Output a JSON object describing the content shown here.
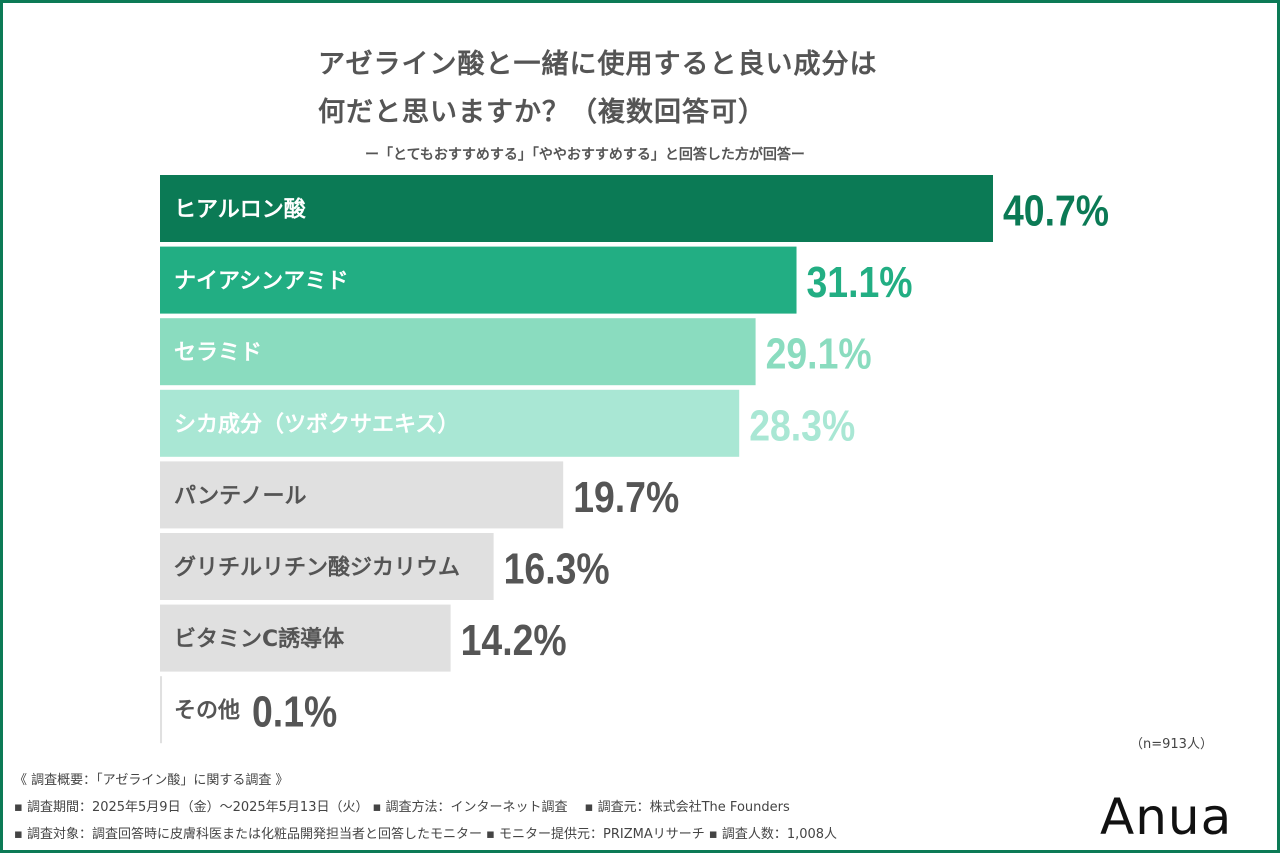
{
  "title_line1": "アゼライン酸と一緒に使用すると良い成分は",
  "title_line2": "何だと思いますか？（複数回答可）",
  "subtitle": "ー「とてもおすすめする」「ややおすすめする」と回答した方が回答ー",
  "chart_data": {
    "type": "bar",
    "orientation": "horizontal",
    "categories": [
      "ヒアルロン酸",
      "ナイアシンアミド",
      "セラミド",
      "シカ成分（ツボクサエキス）",
      "パンテノール",
      "グリチルリチン酸ジカリウム",
      "ビタミンC誘導体",
      "その他"
    ],
    "values": [
      40.7,
      31.1,
      29.1,
      28.3,
      19.7,
      16.3,
      14.2,
      0.1
    ],
    "value_labels": [
      "40.7%",
      "31.1%",
      "29.1%",
      "28.3%",
      "19.7%",
      "16.3%",
      "14.2%",
      "0.1%"
    ],
    "unit": "%",
    "colors": [
      "#0b7a55",
      "#22ae83",
      "#8adcbf",
      "#a9e7d4",
      "#e0e0e0",
      "#e0e0e0",
      "#e0e0e0",
      "#e0e0e0"
    ],
    "label_colors": [
      "#ffffff",
      "#ffffff",
      "#ffffff",
      "#ffffff",
      "#555555",
      "#555555",
      "#555555",
      "#555555"
    ],
    "value_colors": [
      "#0b7a55",
      "#22ae83",
      "#8adcbf",
      "#a9e7d4",
      "#555555",
      "#555555",
      "#555555",
      "#555555"
    ]
  },
  "sample_size": "（n=913人）",
  "footer": {
    "line1": "《 調査概要：「アゼライン酸」に関する調査 》",
    "line2": "▪ 調査期間：2025年5月9日（金）〜2025年5月13日（火） ▪ 調査方法：インターネット調査　 ▪ 調査元：株式会社The Founders",
    "line3": "▪ 調査対象：調査回答時に皮膚科医または化粧品開発担当者と回答したモニター ▪ モニター提供元：PRIZMAリサーチ ▪ 調査人数：1,008人"
  },
  "brand_logo": "Anua"
}
